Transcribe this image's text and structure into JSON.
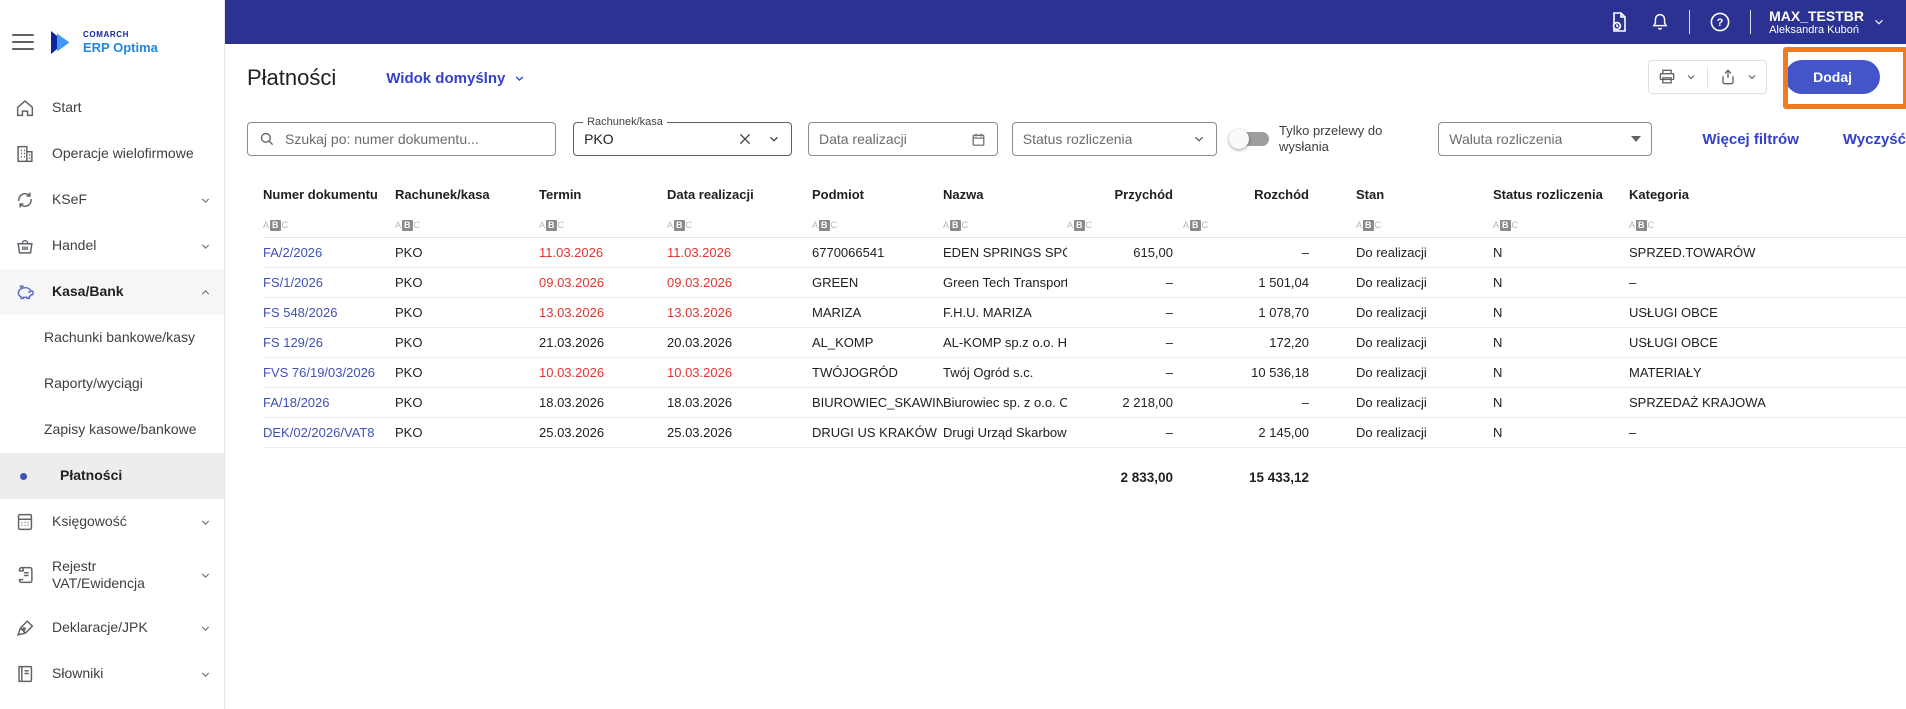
{
  "brand": {
    "company": "COMARCH",
    "product": "ERP Optima"
  },
  "topbar": {
    "icons": [
      "report-icon",
      "notifications-bell-icon",
      "help-icon"
    ],
    "user_login": "MAX_TESTBR",
    "user_name": "Aleksandra Kuboń"
  },
  "sidebar": {
    "items": [
      {
        "label": "Start",
        "icon": "home"
      },
      {
        "label": "Operacje wielofirmowe",
        "icon": "building"
      },
      {
        "label": "KSeF",
        "icon": "sync",
        "chevron": "down"
      },
      {
        "label": "Handel",
        "icon": "basket",
        "chevron": "down"
      },
      {
        "label": "Kasa/Bank",
        "icon": "piggy-bank",
        "chevron": "up",
        "expanded": true
      },
      {
        "label": "Rachunki bankowe/kasy",
        "sub": true
      },
      {
        "label": "Raporty/wyciągi",
        "sub": true
      },
      {
        "label": "Zapisy kasowe/bankowe",
        "sub": true
      },
      {
        "label": "Płatności",
        "sub": true,
        "selected": true
      },
      {
        "label": "Księgowość",
        "icon": "calculator",
        "chevron": "down"
      },
      {
        "label": "Rejestr VAT/Ewidencja",
        "icon": "scroll",
        "chevron": "down",
        "tall": true
      },
      {
        "label": "Deklaracje/JPK",
        "icon": "pen",
        "chevron": "down"
      },
      {
        "label": "Słowniki",
        "icon": "book",
        "chevron": "down"
      }
    ]
  },
  "page": {
    "title": "Płatności",
    "view_selector": "Widok domyślny",
    "add_button": "Dodaj",
    "more_filters": "Więcej filtrów",
    "clear_filters": "Wyczyść"
  },
  "filters": {
    "search_placeholder": "Szukaj po: numer dokumentu...",
    "account_label": "Rachunek/kasa",
    "account_value": "PKO",
    "date_placeholder": "Data realizacji",
    "status_placeholder": "Status rozliczenia",
    "toggle_label": "Tylko przelewy do wysłania",
    "toggle_state": "off",
    "currency_placeholder": "Waluta rozliczenia"
  },
  "table": {
    "columns": [
      "Numer dokumentu",
      "Rachunek/kasa",
      "Termin",
      "Data realizacji",
      "Podmiot",
      "Nazwa",
      "Przychód",
      "Rozchód",
      "Stan",
      "Status rozliczenia",
      "Kategoria"
    ],
    "rows": [
      {
        "numer": "FA/2/2026",
        "rachunek": "PKO",
        "termin": "11.03.2026",
        "data": "11.03.2026",
        "podmiot": "6770066541",
        "nazwa": "EDEN SPRINGS SPÓŁKA",
        "przychod": "615,00",
        "rozchod": "–",
        "stan": "Do realizacji",
        "status": "N",
        "kategoria": "SPRZED.TOWARÓW",
        "overdue": true
      },
      {
        "numer": "FS/1/2026",
        "rachunek": "PKO",
        "termin": "09.03.2026",
        "data": "09.03.2026",
        "podmiot": "GREEN",
        "nazwa": "Green Tech Transport",
        "przychod": "–",
        "rozchod": "1 501,04",
        "stan": "Do realizacji",
        "status": "N",
        "kategoria": "–",
        "overdue": true
      },
      {
        "numer": "FS 548/2026",
        "rachunek": "PKO",
        "termin": "13.03.2026",
        "data": "13.03.2026",
        "podmiot": "MARIZA",
        "nazwa": "F.H.U. MARIZA",
        "przychod": "–",
        "rozchod": "1 078,70",
        "stan": "Do realizacji",
        "status": "N",
        "kategoria": "USŁUGI OBCE",
        "overdue": true
      },
      {
        "numer": "FS 129/26",
        "rachunek": "PKO",
        "termin": "21.03.2026",
        "data": "20.03.2026",
        "podmiot": "AL_KOMP",
        "nazwa": "AL-KOMP sp.z o.o. Hurtownia",
        "przychod": "–",
        "rozchod": "172,20",
        "stan": "Do realizacji",
        "status": "N",
        "kategoria": "USŁUGI OBCE",
        "overdue": false
      },
      {
        "numer": "FVS 76/19/03/2026",
        "rachunek": "PKO",
        "termin": "10.03.2026",
        "data": "10.03.2026",
        "podmiot": "TWÓJOGRÓD",
        "nazwa": "Twój Ogród s.c.",
        "przychod": "–",
        "rozchod": "10 536,18",
        "stan": "Do realizacji",
        "status": "N",
        "kategoria": "MATERIAŁY",
        "overdue": true
      },
      {
        "numer": "FA/18/2026",
        "rachunek": "PKO",
        "termin": "18.03.2026",
        "data": "18.03.2026",
        "podmiot": "BIUROWIEC_SKAWINA",
        "nazwa": "Biurowiec sp. z o.o. Od",
        "przychod": "2 218,00",
        "rozchod": "–",
        "stan": "Do realizacji",
        "status": "N",
        "kategoria": "SPRZEDAŻ KRAJOWA",
        "overdue": false
      },
      {
        "numer": "DEK/02/2026/VAT8",
        "rachunek": "PKO",
        "termin": "25.03.2026",
        "data": "25.03.2026",
        "podmiot": "DRUGI US KRAKÓW",
        "nazwa": "Drugi Urząd Skarbowy",
        "przychod": "–",
        "rozchod": "2 145,00",
        "stan": "Do realizacji",
        "status": "N",
        "kategoria": "–",
        "overdue": false
      }
    ],
    "totals": {
      "przychod": "2 833,00",
      "rozchod": "15 433,12"
    }
  },
  "colors": {
    "topbar": "#2b3292",
    "accent_blue": "#4355c9",
    "link_blue": "#3441c9",
    "doc_link": "#3f51b5",
    "overdue_red": "#e5342f",
    "annotation_orange": "#ee7d22"
  }
}
